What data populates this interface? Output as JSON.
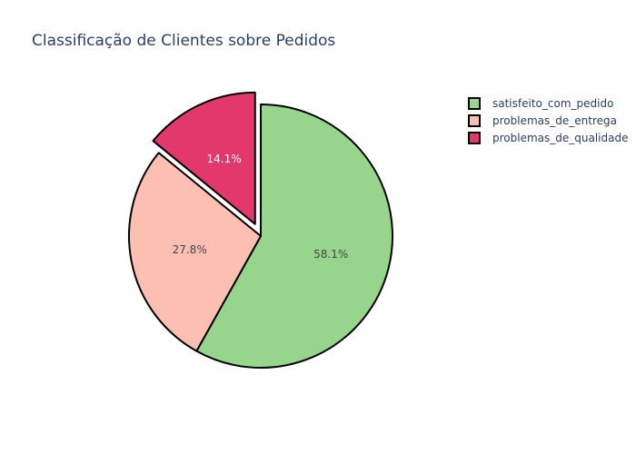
{
  "chart_data": {
    "type": "pie",
    "title": "Classificação de Clientes sobre Pedidos",
    "labels": [
      "satisfeito_com_pedido",
      "problemas_de_entrega",
      "problemas_de_qualidade"
    ],
    "values": [
      58.1,
      27.8,
      14.1
    ],
    "text_labels": [
      "58.1%",
      "27.8%",
      "14.1%"
    ],
    "colors": [
      "#97d58d",
      "#fdbfb2",
      "#e2386c"
    ],
    "label_colors": [
      "#444444",
      "#444444",
      "#ffffff"
    ],
    "pull": [
      0,
      0,
      0.1
    ],
    "direction": "clockwise",
    "start_angle_deg": 90,
    "legend_position": "top-right"
  }
}
